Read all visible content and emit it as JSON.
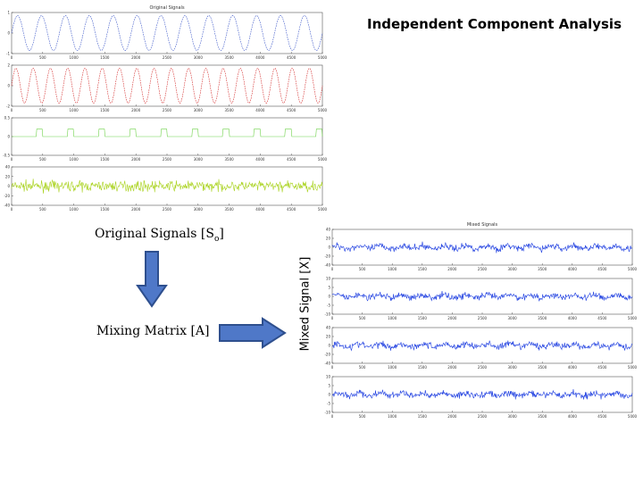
{
  "title": "Independent Component Analysis",
  "labels": {
    "original_signals": "Original Signals [S",
    "original_signals_sub": "o",
    "original_signals_end": "]",
    "mixing_matrix": "Mixing Matrix [A]",
    "mixed_signal": "Mixed Signal [X]"
  },
  "panels": {
    "original": {
      "title": "Original Signals",
      "x_ticks": [
        "0",
        "500",
        "1000",
        "1500",
        "2000",
        "2500",
        "3000",
        "3500",
        "4000",
        "4500",
        "5000"
      ],
      "xlim": [
        0,
        5000
      ],
      "signals": [
        {
          "kind": "sine",
          "color": "#3a55c8",
          "style": "dashed",
          "y_ticks": [
            "1",
            "0",
            "-1"
          ],
          "ylim": [
            -1,
            1
          ],
          "cycles": 13
        },
        {
          "kind": "sine",
          "color": "#d42a2a",
          "style": "dashed",
          "y_ticks": [
            "2",
            "0",
            "-2"
          ],
          "ylim": [
            -2,
            2
          ],
          "cycles": 18
        },
        {
          "kind": "square",
          "color": "#6fd24a",
          "style": "solid",
          "y_ticks": [
            "0.5",
            "0",
            "-0.5"
          ],
          "ylim": [
            -0.5,
            0.5
          ],
          "cycles": 10
        },
        {
          "kind": "noise",
          "color": "#a8d21a",
          "style": "solid",
          "y_ticks": [
            "40",
            "20",
            "0",
            "-20",
            "-40"
          ],
          "ylim": [
            -40,
            40
          ]
        }
      ]
    },
    "mixed": {
      "title": "Mixed Signals",
      "x_ticks": [
        "0",
        "500",
        "1000",
        "1500",
        "2000",
        "2500",
        "3000",
        "3500",
        "4000",
        "4500",
        "5000"
      ],
      "xlim": [
        0,
        5000
      ],
      "color": "#1a3be0",
      "signals": [
        {
          "y_ticks": [
            "40",
            "20",
            "0",
            "-20",
            "-40"
          ],
          "ylim": [
            -40,
            40
          ]
        },
        {
          "y_ticks": [
            "10",
            "5",
            "0",
            "-5",
            "-10"
          ],
          "ylim": [
            -10,
            10
          ]
        },
        {
          "y_ticks": [
            "40",
            "20",
            "0",
            "-20",
            "-40"
          ],
          "ylim": [
            -40,
            40
          ]
        },
        {
          "y_ticks": [
            "10",
            "5",
            "0",
            "-5",
            "-10"
          ],
          "ylim": [
            -10,
            10
          ]
        }
      ]
    }
  },
  "colors": {
    "arrow_fill": "#4f78c8",
    "arrow_stroke": "#2e4f8e"
  }
}
